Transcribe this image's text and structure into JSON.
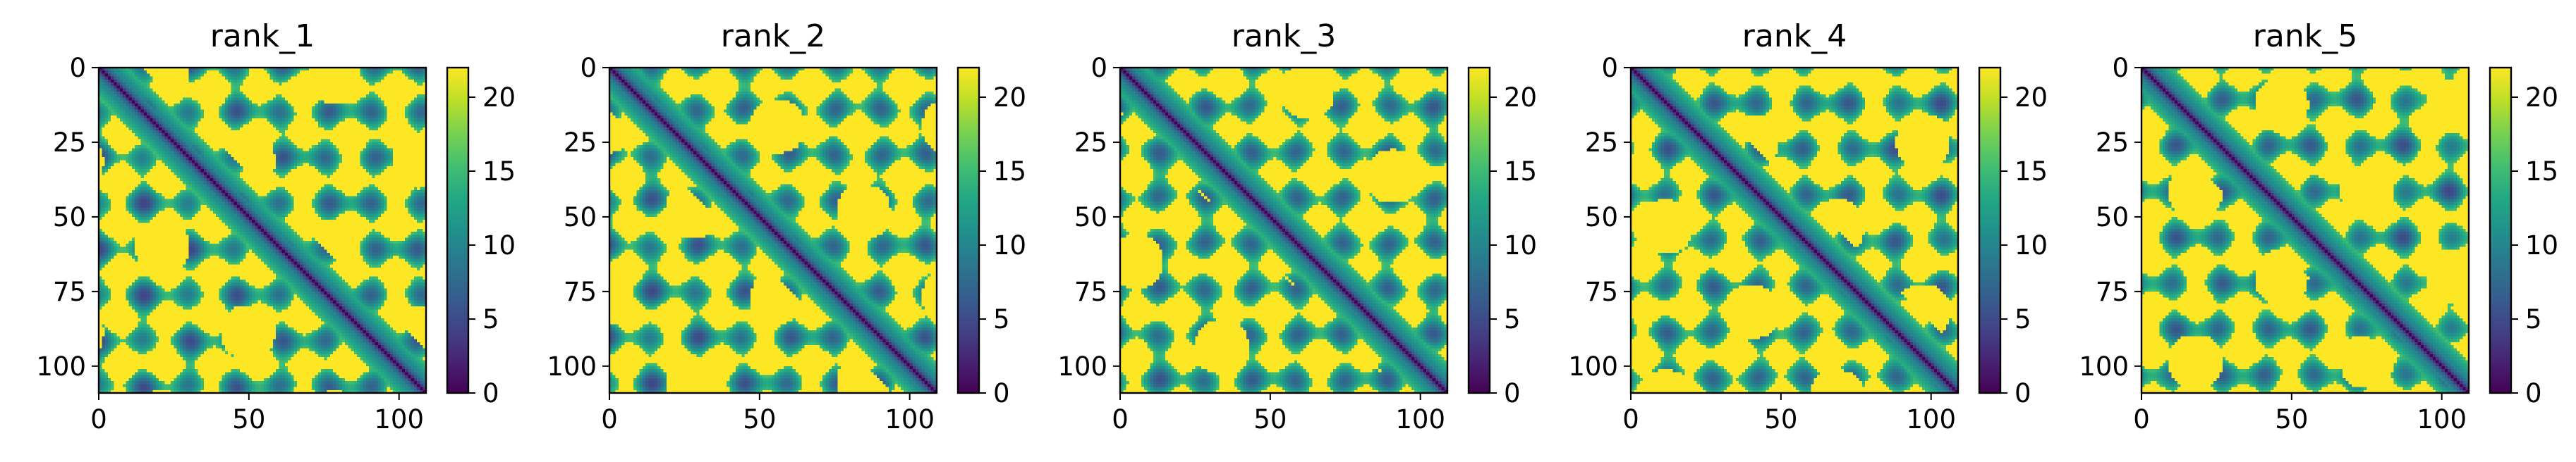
{
  "chart_data": [
    {
      "type": "heatmap",
      "title": "rank_1",
      "x_ticks": [
        0,
        50,
        100
      ],
      "y_ticks": [
        0,
        25,
        50,
        75,
        100
      ],
      "xlim": [
        0,
        109
      ],
      "ylim": [
        109,
        0
      ],
      "colorbar": {
        "min": 0,
        "max": 22,
        "ticks": [
          0,
          5,
          10,
          15,
          20
        ],
        "colormap": "viridis"
      }
    },
    {
      "type": "heatmap",
      "title": "rank_2",
      "x_ticks": [
        0,
        50,
        100
      ],
      "y_ticks": [
        0,
        25,
        50,
        75,
        100
      ],
      "xlim": [
        0,
        109
      ],
      "ylim": [
        109,
        0
      ],
      "colorbar": {
        "min": 0,
        "max": 22,
        "ticks": [
          0,
          5,
          10,
          15,
          20
        ],
        "colormap": "viridis"
      }
    },
    {
      "type": "heatmap",
      "title": "rank_3",
      "x_ticks": [
        0,
        50,
        100
      ],
      "y_ticks": [
        0,
        25,
        50,
        75,
        100
      ],
      "xlim": [
        0,
        109
      ],
      "ylim": [
        109,
        0
      ],
      "colorbar": {
        "min": 0,
        "max": 22,
        "ticks": [
          0,
          5,
          10,
          15,
          20
        ],
        "colormap": "viridis"
      }
    },
    {
      "type": "heatmap",
      "title": "rank_4",
      "x_ticks": [
        0,
        50,
        100
      ],
      "y_ticks": [
        0,
        25,
        50,
        75,
        100
      ],
      "xlim": [
        0,
        109
      ],
      "ylim": [
        109,
        0
      ],
      "colorbar": {
        "min": 0,
        "max": 22,
        "ticks": [
          0,
          5,
          10,
          15,
          20
        ],
        "colormap": "viridis"
      }
    },
    {
      "type": "heatmap",
      "title": "rank_5",
      "x_ticks": [
        0,
        50,
        100
      ],
      "y_ticks": [
        0,
        25,
        50,
        75,
        100
      ],
      "xlim": [
        0,
        109
      ],
      "ylim": [
        109,
        0
      ],
      "colorbar": {
        "min": 0,
        "max": 22,
        "ticks": [
          0,
          5,
          10,
          15,
          20
        ],
        "colormap": "viridis"
      }
    }
  ]
}
